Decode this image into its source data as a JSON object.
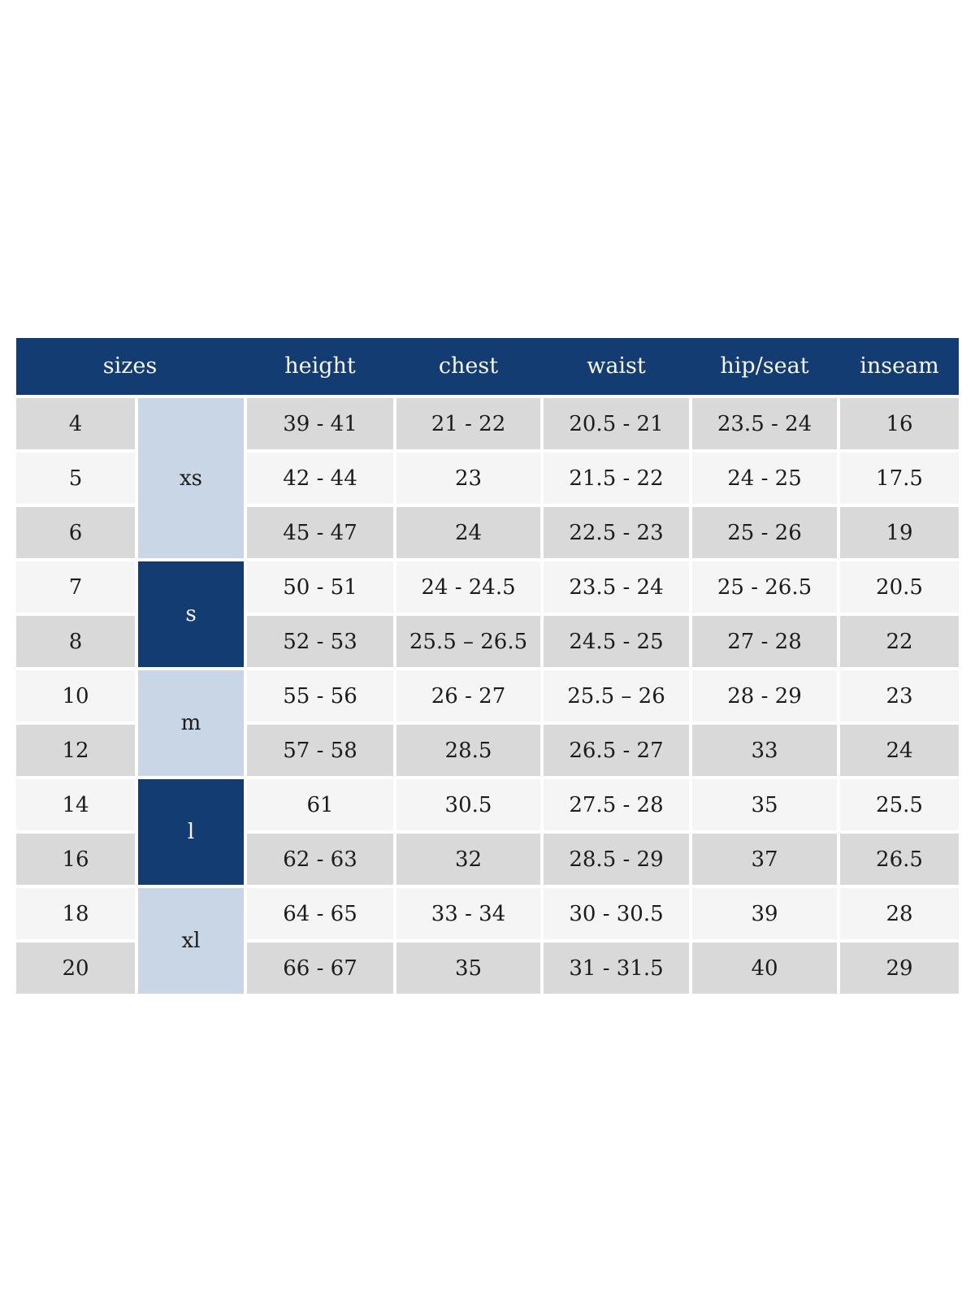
{
  "colors": {
    "header_navy": "#133c73",
    "group_light_blue": "#c9d6e5",
    "row_gray": "#d9d9d9",
    "row_offwhite": "#f5f5f5",
    "header_text": "#f7f7f5",
    "cell_text": "#1c1c1c",
    "page_background": "#ffffff"
  },
  "chart_data": {
    "type": "table",
    "columns": [
      "sizes",
      "height",
      "chest",
      "waist",
      "hip/seat",
      "inseam"
    ],
    "groups": [
      {
        "label": "xs",
        "rows": [
          {
            "size": "4",
            "height": "39 - 41",
            "chest": "21 - 22",
            "waist": "20.5 - 21",
            "hip_seat": "23.5 - 24",
            "inseam": "16"
          },
          {
            "size": "5",
            "height": "42 - 44",
            "chest": "23",
            "waist": "21.5 - 22",
            "hip_seat": "24 - 25",
            "inseam": "17.5"
          },
          {
            "size": "6",
            "height": "45 - 47",
            "chest": "24",
            "waist": "22.5 - 23",
            "hip_seat": "25 - 26",
            "inseam": "19"
          }
        ]
      },
      {
        "label": "s",
        "rows": [
          {
            "size": "7",
            "height": "50 - 51",
            "chest": "24 - 24.5",
            "waist": "23.5 - 24",
            "hip_seat": "25 - 26.5",
            "inseam": "20.5"
          },
          {
            "size": "8",
            "height": "52 - 53",
            "chest": "25.5 – 26.5",
            "waist": "24.5 - 25",
            "hip_seat": "27 - 28",
            "inseam": "22"
          }
        ]
      },
      {
        "label": "m",
        "rows": [
          {
            "size": "10",
            "height": "55 - 56",
            "chest": "26 - 27",
            "waist": "25.5 – 26",
            "hip_seat": "28 - 29",
            "inseam": "23"
          },
          {
            "size": "12",
            "height": "57 - 58",
            "chest": "28.5",
            "waist": "26.5 - 27",
            "hip_seat": "33",
            "inseam": "24"
          }
        ]
      },
      {
        "label": "l",
        "rows": [
          {
            "size": "14",
            "height": "61",
            "chest": "30.5",
            "waist": "27.5 - 28",
            "hip_seat": "35",
            "inseam": "25.5"
          },
          {
            "size": "16",
            "height": "62 - 63",
            "chest": "32",
            "waist": "28.5 - 29",
            "hip_seat": "37",
            "inseam": "26.5"
          }
        ]
      },
      {
        "label": "xl",
        "rows": [
          {
            "size": "18",
            "height": "64 - 65",
            "chest": "33 - 34",
            "waist": "30 - 30.5",
            "hip_seat": "39",
            "inseam": "28"
          },
          {
            "size": "20",
            "height": "66 - 67",
            "chest": "35",
            "waist": "31 - 31.5",
            "hip_seat": "40",
            "inseam": "29"
          }
        ]
      }
    ]
  }
}
